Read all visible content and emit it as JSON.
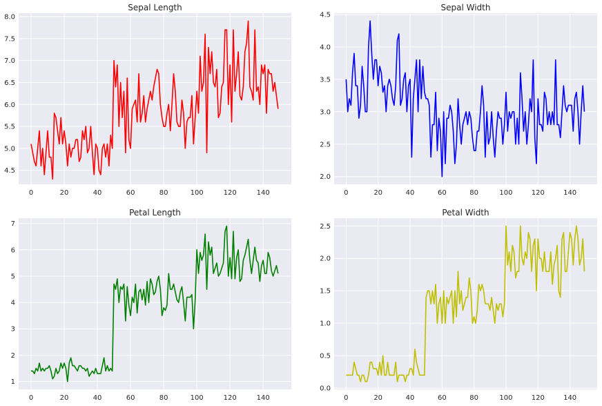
{
  "chart_data": [
    {
      "type": "line",
      "title": "Sepal Length",
      "color": "#ff0000",
      "xlim": [
        -7.5,
        157
      ],
      "ylim": [
        4.18,
        8.08
      ],
      "xticks": [
        0,
        20,
        40,
        60,
        80,
        100,
        120,
        140
      ],
      "yticks": [
        "4.5",
        "5.0",
        "5.5",
        "6.0",
        "6.5",
        "7.0",
        "7.5",
        "8.0"
      ],
      "values": [
        5.1,
        4.9,
        4.7,
        4.6,
        5.0,
        5.4,
        4.6,
        5.0,
        4.4,
        4.9,
        5.4,
        4.8,
        4.8,
        4.3,
        5.8,
        5.7,
        5.4,
        5.1,
        5.7,
        5.1,
        5.4,
        5.1,
        4.6,
        5.1,
        4.8,
        5.0,
        5.0,
        5.2,
        5.2,
        4.7,
        4.8,
        5.4,
        5.2,
        5.5,
        4.9,
        5.0,
        5.5,
        4.9,
        4.4,
        5.1,
        5.0,
        4.5,
        4.4,
        5.0,
        5.1,
        4.8,
        5.1,
        4.6,
        5.3,
        5.0,
        7.0,
        6.4,
        6.9,
        5.5,
        6.5,
        5.7,
        6.3,
        4.9,
        6.6,
        5.2,
        5.0,
        5.9,
        6.0,
        6.1,
        5.6,
        6.7,
        5.6,
        5.8,
        6.2,
        5.6,
        5.9,
        6.1,
        6.3,
        6.1,
        6.4,
        6.6,
        6.8,
        6.7,
        6.0,
        5.7,
        5.5,
        5.5,
        5.8,
        6.0,
        5.4,
        6.0,
        6.7,
        6.3,
        5.6,
        5.5,
        5.5,
        6.1,
        5.8,
        5.0,
        5.6,
        5.7,
        5.7,
        6.2,
        5.1,
        5.7,
        6.3,
        5.8,
        7.1,
        6.3,
        6.5,
        7.6,
        4.9,
        7.3,
        6.7,
        7.2,
        6.5,
        6.4,
        6.8,
        5.7,
        5.8,
        6.4,
        6.5,
        7.7,
        7.7,
        6.0,
        6.9,
        5.6,
        7.7,
        6.3,
        6.7,
        7.2,
        6.2,
        6.1,
        6.4,
        7.2,
        7.4,
        7.9,
        6.4,
        6.3,
        6.1,
        7.7,
        6.3,
        6.4,
        6.0,
        6.9,
        6.7,
        6.9,
        5.8,
        6.8,
        6.7,
        6.7,
        6.3,
        6.5,
        6.2,
        5.9
      ]
    },
    {
      "type": "line",
      "title": "Sepal Width",
      "color": "#0000ff",
      "xlim": [
        -7.5,
        157
      ],
      "ylim": [
        1.88,
        4.52
      ],
      "xticks": [
        0,
        20,
        40,
        60,
        80,
        100,
        120,
        140
      ],
      "yticks": [
        "2.0",
        "2.5",
        "3.0",
        "3.5",
        "4.0",
        "4.5"
      ],
      "values": [
        3.5,
        3.0,
        3.2,
        3.1,
        3.6,
        3.9,
        3.4,
        3.4,
        2.9,
        3.1,
        3.7,
        3.4,
        3.0,
        3.0,
        4.0,
        4.4,
        3.9,
        3.5,
        3.8,
        3.8,
        3.4,
        3.7,
        3.6,
        3.3,
        3.4,
        3.0,
        3.4,
        3.5,
        3.4,
        3.2,
        3.1,
        3.4,
        4.1,
        4.2,
        3.1,
        3.2,
        3.5,
        3.6,
        3.0,
        3.4,
        3.5,
        2.3,
        3.2,
        3.5,
        3.8,
        3.0,
        3.8,
        3.2,
        3.7,
        3.3,
        3.2,
        3.2,
        3.1,
        2.3,
        2.8,
        2.8,
        3.3,
        2.4,
        2.9,
        2.7,
        2.0,
        3.0,
        2.2,
        2.9,
        2.9,
        3.1,
        3.0,
        2.7,
        2.2,
        2.5,
        3.2,
        2.8,
        2.5,
        2.8,
        2.9,
        3.0,
        2.8,
        3.0,
        2.9,
        2.6,
        2.4,
        2.4,
        2.7,
        2.7,
        3.0,
        3.4,
        3.1,
        2.3,
        3.0,
        2.5,
        2.6,
        3.0,
        2.6,
        2.3,
        2.7,
        3.0,
        2.9,
        2.9,
        2.5,
        2.8,
        3.3,
        2.7,
        3.0,
        2.9,
        3.0,
        3.0,
        2.5,
        2.9,
        2.5,
        3.6,
        3.2,
        2.7,
        3.0,
        2.5,
        2.8,
        3.2,
        3.0,
        3.8,
        2.6,
        2.2,
        3.2,
        2.8,
        2.8,
        2.7,
        3.3,
        3.2,
        2.8,
        3.0,
        2.8,
        3.0,
        2.8,
        3.8,
        2.8,
        2.8,
        2.6,
        3.0,
        3.4,
        3.1,
        3.0,
        3.1,
        3.1,
        3.1,
        2.7,
        3.2,
        3.3,
        3.0,
        2.5,
        3.0,
        3.4,
        3.0
      ]
    },
    {
      "type": "line",
      "title": "Petal Length",
      "color": "#008000",
      "xlim": [
        -7.5,
        157
      ],
      "ylim": [
        0.7,
        7.2
      ],
      "xticks": [
        0,
        20,
        40,
        60,
        80,
        100,
        120,
        140
      ],
      "yticks": [
        "1",
        "2",
        "3",
        "4",
        "5",
        "6",
        "7"
      ],
      "values": [
        1.4,
        1.4,
        1.3,
        1.5,
        1.4,
        1.7,
        1.4,
        1.5,
        1.4,
        1.5,
        1.5,
        1.6,
        1.4,
        1.1,
        1.2,
        1.5,
        1.3,
        1.4,
        1.7,
        1.5,
        1.7,
        1.5,
        1.0,
        1.7,
        1.9,
        1.6,
        1.6,
        1.5,
        1.4,
        1.6,
        1.6,
        1.5,
        1.5,
        1.4,
        1.5,
        1.2,
        1.3,
        1.4,
        1.3,
        1.5,
        1.3,
        1.3,
        1.3,
        1.6,
        1.9,
        1.4,
        1.6,
        1.4,
        1.5,
        1.4,
        4.7,
        4.5,
        4.9,
        4.0,
        4.6,
        4.5,
        4.7,
        3.3,
        4.6,
        3.9,
        3.5,
        4.2,
        4.0,
        4.7,
        3.6,
        4.4,
        4.5,
        4.1,
        4.5,
        3.9,
        4.8,
        4.0,
        4.9,
        4.7,
        4.3,
        4.4,
        4.8,
        5.0,
        4.5,
        3.5,
        3.8,
        3.7,
        3.9,
        5.1,
        4.5,
        4.5,
        4.7,
        4.4,
        4.1,
        4.0,
        4.4,
        4.6,
        4.0,
        3.3,
        4.2,
        4.2,
        4.2,
        4.3,
        3.0,
        4.1,
        6.0,
        5.1,
        5.9,
        5.6,
        5.8,
        6.6,
        4.5,
        6.3,
        5.8,
        6.1,
        5.1,
        5.3,
        5.5,
        5.0,
        5.1,
        5.3,
        5.5,
        6.7,
        6.9,
        5.0,
        5.7,
        4.9,
        6.7,
        4.9,
        5.7,
        6.0,
        4.8,
        4.9,
        5.6,
        5.8,
        6.1,
        6.4,
        5.6,
        5.1,
        5.6,
        6.1,
        5.6,
        5.5,
        4.8,
        5.4,
        5.6,
        5.1,
        5.1,
        5.9,
        5.7,
        5.2,
        5.0,
        5.2,
        5.4,
        5.1
      ]
    },
    {
      "type": "line",
      "title": "Petal Width",
      "color": "#bfbf00",
      "xlim": [
        -7.5,
        157
      ],
      "ylim": [
        -0.02,
        2.62
      ],
      "xticks": [
        0,
        20,
        40,
        60,
        80,
        100,
        120,
        140
      ],
      "yticks": [
        "0.0",
        "0.5",
        "1.0",
        "1.5",
        "2.0",
        "2.5"
      ],
      "values": [
        0.2,
        0.2,
        0.2,
        0.2,
        0.2,
        0.4,
        0.3,
        0.2,
        0.2,
        0.1,
        0.2,
        0.2,
        0.1,
        0.1,
        0.2,
        0.4,
        0.4,
        0.3,
        0.3,
        0.3,
        0.2,
        0.4,
        0.2,
        0.5,
        0.2,
        0.2,
        0.4,
        0.2,
        0.2,
        0.2,
        0.2,
        0.4,
        0.1,
        0.2,
        0.2,
        0.2,
        0.2,
        0.1,
        0.2,
        0.2,
        0.3,
        0.3,
        0.2,
        0.6,
        0.4,
        0.3,
        0.2,
        0.2,
        0.2,
        0.2,
        1.4,
        1.5,
        1.5,
        1.3,
        1.5,
        1.3,
        1.6,
        1.0,
        1.3,
        1.4,
        1.0,
        1.5,
        1.0,
        1.4,
        1.3,
        1.4,
        1.5,
        1.0,
        1.5,
        1.1,
        1.8,
        1.3,
        1.5,
        1.2,
        1.3,
        1.4,
        1.4,
        1.7,
        1.5,
        1.0,
        1.1,
        1.0,
        1.2,
        1.6,
        1.5,
        1.6,
        1.5,
        1.3,
        1.3,
        1.3,
        1.2,
        1.4,
        1.2,
        1.0,
        1.3,
        1.2,
        1.3,
        1.3,
        1.1,
        1.3,
        2.5,
        1.9,
        2.1,
        1.8,
        2.2,
        2.1,
        1.7,
        1.8,
        1.8,
        2.5,
        2.0,
        1.9,
        2.1,
        2.0,
        2.4,
        2.3,
        1.8,
        2.2,
        2.3,
        1.5,
        2.3,
        2.0,
        2.0,
        1.8,
        2.1,
        1.8,
        1.8,
        1.8,
        2.1,
        1.6,
        1.9,
        2.0,
        2.2,
        1.5,
        1.4,
        2.3,
        2.4,
        1.8,
        1.8,
        2.1,
        2.4,
        2.3,
        1.9,
        2.3,
        2.5,
        2.3,
        1.9,
        2.0,
        2.3,
        1.8
      ]
    }
  ]
}
